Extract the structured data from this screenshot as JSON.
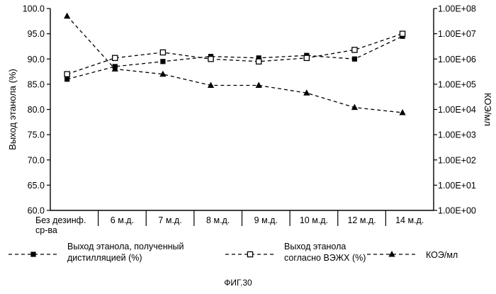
{
  "chart_data": {
    "type": "line",
    "categories": [
      [
        "Без дезинф.",
        "ср-ва"
      ],
      [
        "6 м.д."
      ],
      [
        "7 м.д."
      ],
      [
        "8 м.д."
      ],
      [
        "9 м.д."
      ],
      [
        "10 м.д."
      ],
      [
        "12 м.д."
      ],
      [
        "14 м.д."
      ]
    ],
    "y_left": {
      "label": "Выход этанола (%)",
      "ylim": [
        60,
        100
      ],
      "ticks": [
        "60.0",
        "65.0",
        "70.0",
        "75.0",
        "80.0",
        "85.0",
        "90.0",
        "95.0",
        "100.0"
      ]
    },
    "y_right": {
      "label": "КОЭ/мл",
      "scale": "log",
      "ylim": [
        1,
        100000000
      ],
      "ticks": [
        "1.00E+00",
        "1.00E+01",
        "1.00E+02",
        "1.00E+03",
        "1.00E+04",
        "1.00E+05",
        "1.00E+06",
        "1.00E+07",
        "1.00E+08"
      ]
    },
    "series": [
      {
        "name": "Выход этанола, полученный дистилляцией (%)",
        "legend_lines": [
          "Выход этанола, полученный",
          "дистилляцией (%)"
        ],
        "axis": "left",
        "marker": "filled-square",
        "values": [
          86.0,
          88.5,
          89.5,
          90.5,
          90.2,
          90.7,
          90.0,
          94.5
        ]
      },
      {
        "name": "Выход этанола согласно ВЭЖХ (%)",
        "legend_lines": [
          "Выход этанола",
          "согласно ВЭЖХ (%)"
        ],
        "axis": "left",
        "marker": "open-square",
        "values": [
          87.0,
          90.2,
          91.3,
          90.0,
          89.5,
          90.2,
          91.8,
          95.0
        ]
      },
      {
        "name": "КОЭ/мл",
        "legend_lines": [
          "КОЭ/мл"
        ],
        "axis": "right",
        "marker": "filled-triangle",
        "values": [
          50000000,
          400000,
          250000,
          90000,
          90000,
          45000,
          12000,
          7500
        ]
      }
    ],
    "figure_caption": "ФИГ.30"
  }
}
